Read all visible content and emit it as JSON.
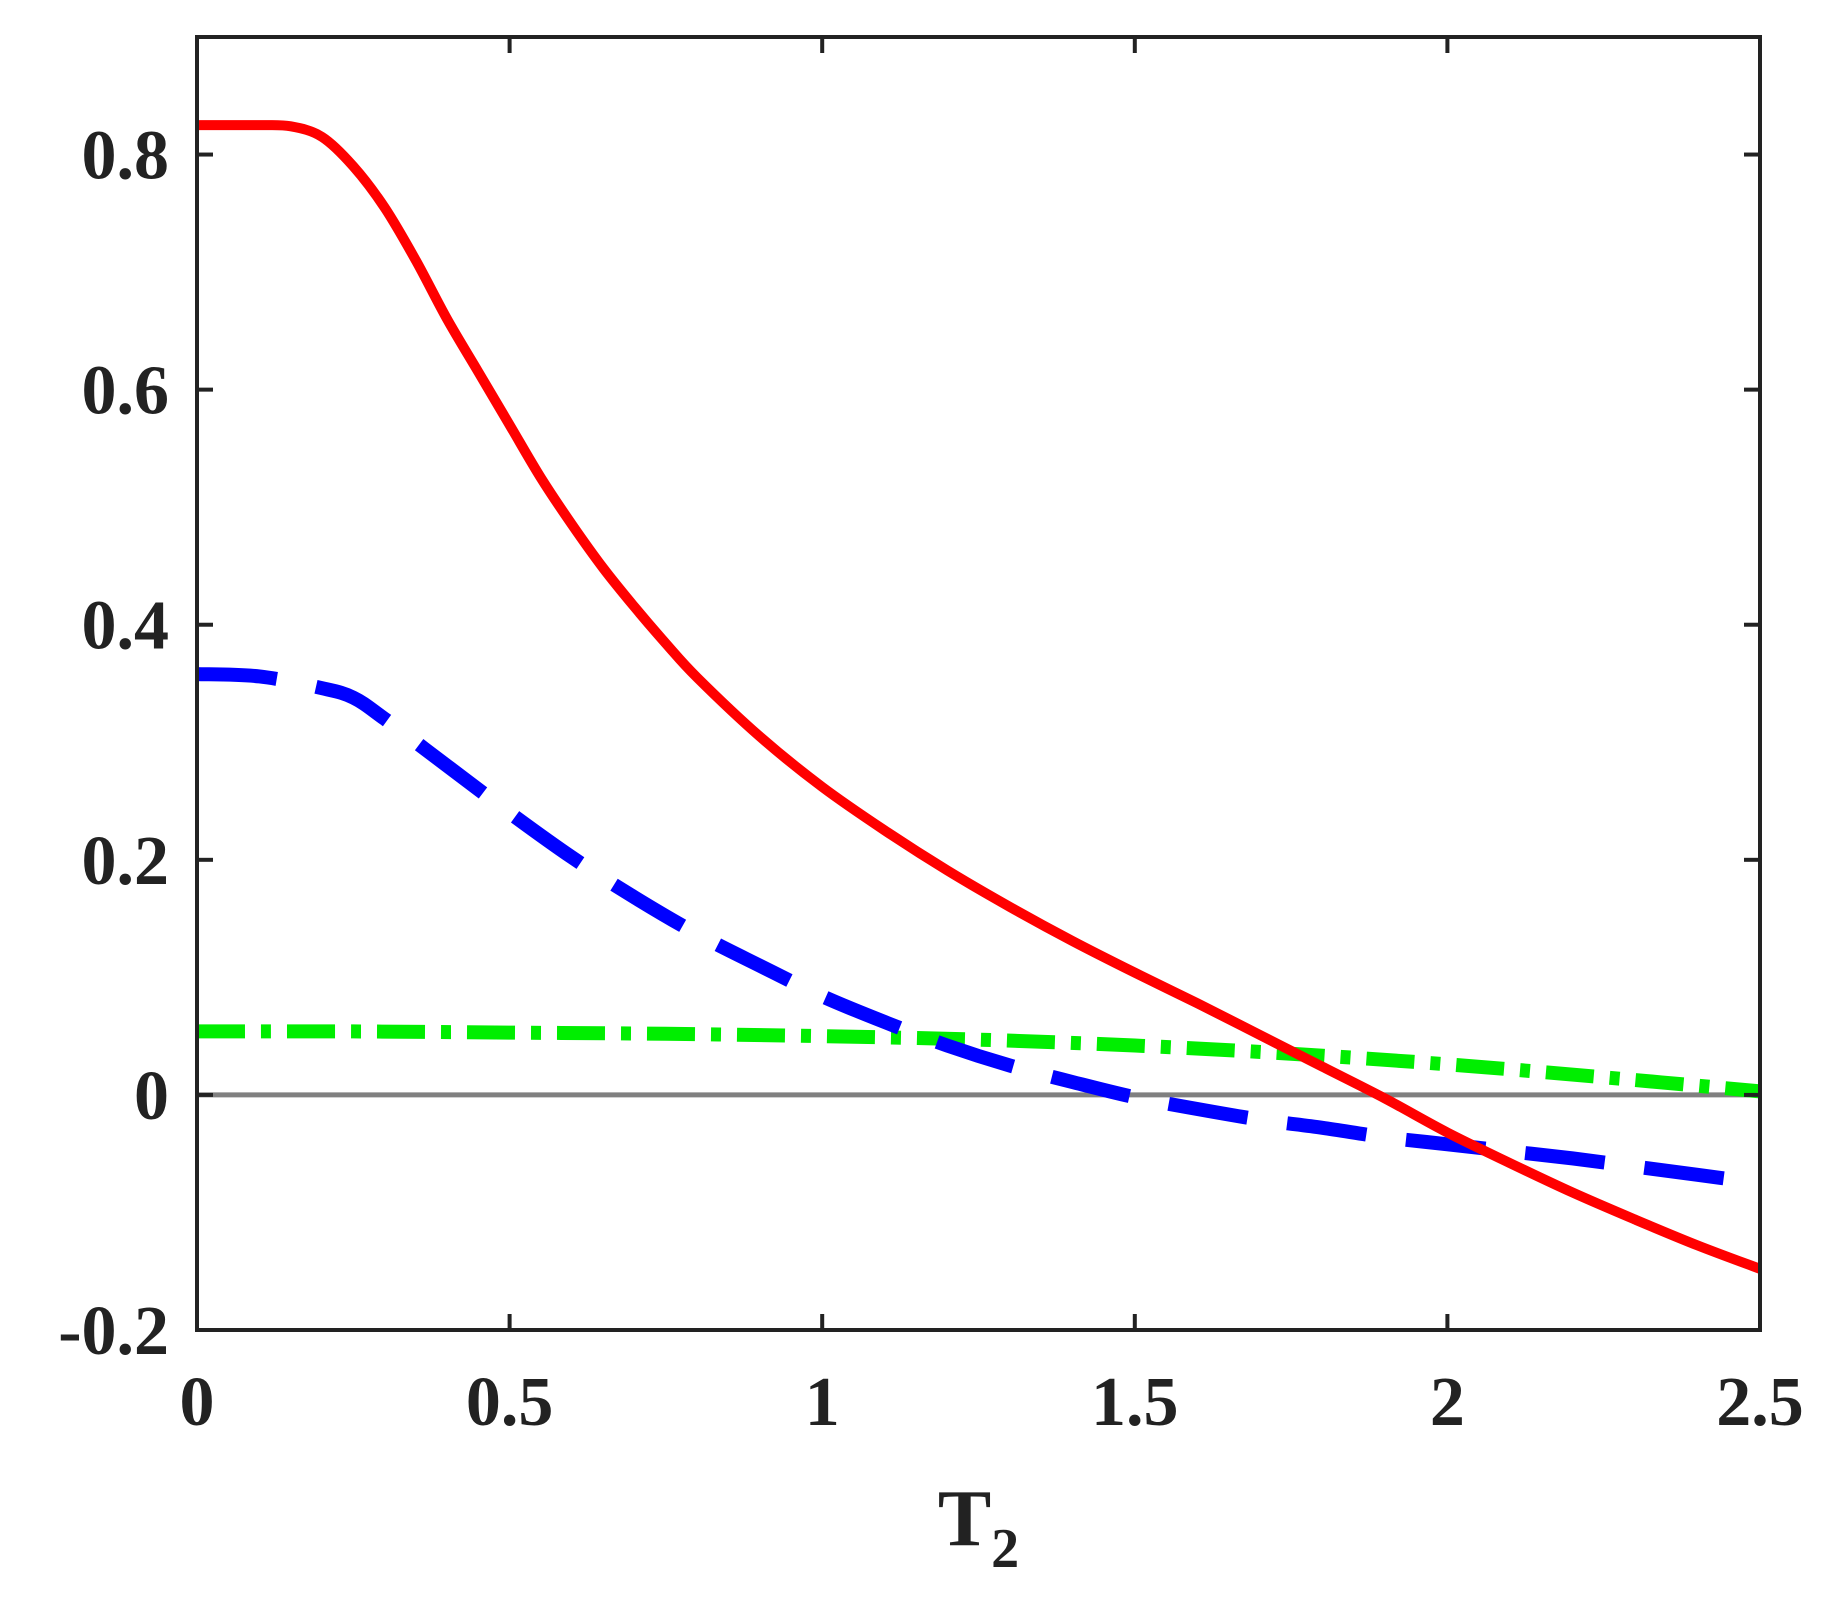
{
  "chart_data": {
    "type": "line",
    "xlabel": "T",
    "xlabel_subscript": "2",
    "ylabel": "",
    "title": "",
    "xlim": [
      0,
      2.5
    ],
    "ylim": [
      -0.2,
      0.9
    ],
    "grid": false,
    "legend": "none",
    "x_ticks": [
      0,
      0.5,
      1,
      1.5,
      2,
      2.5
    ],
    "x_tick_labels": [
      "0",
      "0.5",
      "1",
      "1.5",
      "2",
      "2.5"
    ],
    "y_ticks": [
      -0.2,
      0,
      0.2,
      0.4,
      0.6,
      0.8
    ],
    "y_tick_labels": [
      "-0.2",
      "0",
      "0.2",
      "0.4",
      "0.6",
      "0.8"
    ],
    "reference_line": {
      "y": 0,
      "color": "#808080"
    },
    "series": [
      {
        "color": "#ff0000",
        "style": "solid",
        "x": [
          0,
          0.05,
          0.1,
          0.15,
          0.2,
          0.25,
          0.3,
          0.35,
          0.4,
          0.45,
          0.5,
          0.55,
          0.6,
          0.65,
          0.7,
          0.75,
          0.8,
          0.9,
          1.0,
          1.1,
          1.2,
          1.3,
          1.4,
          1.5,
          1.6,
          1.7,
          1.8,
          1.9,
          2.0,
          2.1,
          2.2,
          2.3,
          2.4,
          2.5
        ],
        "y": [
          0.825,
          0.825,
          0.825,
          0.824,
          0.815,
          0.79,
          0.755,
          0.71,
          0.66,
          0.615,
          0.57,
          0.525,
          0.485,
          0.448,
          0.415,
          0.384,
          0.355,
          0.305,
          0.262,
          0.225,
          0.191,
          0.16,
          0.131,
          0.104,
          0.078,
          0.051,
          0.024,
          -0.003,
          -0.032,
          -0.058,
          -0.083,
          -0.106,
          -0.128,
          -0.148
        ]
      },
      {
        "color": "#0000ff",
        "style": "dashed",
        "x": [
          0,
          0.1,
          0.2,
          0.25,
          0.3,
          0.4,
          0.5,
          0.6,
          0.7,
          0.8,
          0.9,
          1.0,
          1.1,
          1.2,
          1.3,
          1.4,
          1.5,
          1.6,
          1.7,
          1.8,
          1.9,
          2.0,
          2.1,
          2.2,
          2.3,
          2.4,
          2.5
        ],
        "y": [
          0.358,
          0.356,
          0.346,
          0.338,
          0.32,
          0.28,
          0.24,
          0.202,
          0.168,
          0.137,
          0.11,
          0.084,
          0.062,
          0.042,
          0.025,
          0.011,
          -0.002,
          -0.012,
          -0.021,
          -0.028,
          -0.036,
          -0.042,
          -0.048,
          -0.054,
          -0.061,
          -0.068,
          -0.075
        ]
      },
      {
        "color": "#00ee00",
        "style": "dashdot",
        "x": [
          0,
          0.25,
          0.5,
          0.75,
          1.0,
          1.25,
          1.5,
          1.75,
          2.0,
          2.25,
          2.5
        ],
        "y": [
          0.054,
          0.054,
          0.053,
          0.052,
          0.05,
          0.047,
          0.042,
          0.035,
          0.026,
          0.015,
          0.003
        ]
      }
    ]
  }
}
